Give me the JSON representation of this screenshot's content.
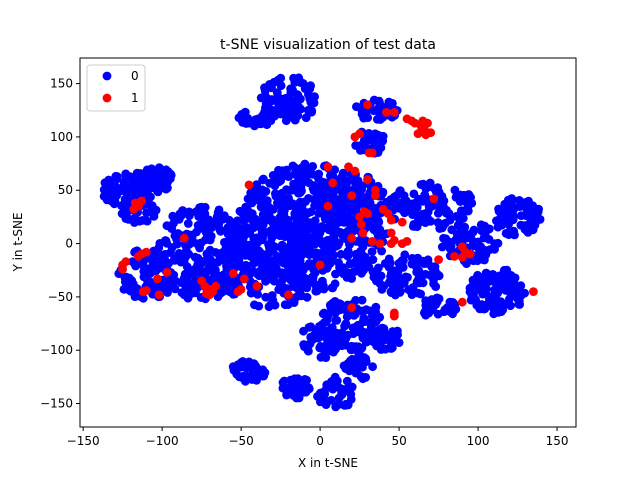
{
  "chart_data": {
    "type": "scatter",
    "title": "t-SNE visualization of test data",
    "xlabel": "X in t-SNE",
    "ylabel": "Y in t-SNE",
    "xlim": [
      -152,
      162
    ],
    "ylim": [
      -172,
      174
    ],
    "xticks": [
      -150,
      -100,
      -50,
      0,
      50,
      100,
      150
    ],
    "yticks": [
      -150,
      -100,
      -50,
      0,
      50,
      100,
      150
    ],
    "grid": false,
    "legend_position": "top-left",
    "series": [
      {
        "name": "0",
        "color": "#0000ff",
        "clusters": [
          {
            "cx": -5,
            "cy": 15,
            "rx": 48,
            "ry": 60,
            "n": 500
          },
          {
            "cx": 20,
            "cy": 40,
            "rx": 25,
            "ry": 25,
            "n": 140
          },
          {
            "cx": -30,
            "cy": -20,
            "rx": 35,
            "ry": 40,
            "n": 200
          },
          {
            "cx": -75,
            "cy": 0,
            "rx": 28,
            "ry": 35,
            "n": 160
          },
          {
            "cx": -120,
            "cy": 50,
            "rx": 18,
            "ry": 18,
            "n": 90
          },
          {
            "cx": -105,
            "cy": 60,
            "rx": 12,
            "ry": 12,
            "n": 50
          },
          {
            "cx": -115,
            "cy": 30,
            "rx": 12,
            "ry": 12,
            "n": 40
          },
          {
            "cx": -110,
            "cy": -30,
            "rx": 18,
            "ry": 25,
            "n": 90
          },
          {
            "cx": -75,
            "cy": -40,
            "rx": 18,
            "ry": 14,
            "n": 70
          },
          {
            "cx": -20,
            "cy": 135,
            "rx": 18,
            "ry": 22,
            "n": 90
          },
          {
            "cx": -40,
            "cy": 118,
            "rx": 12,
            "ry": 8,
            "n": 30
          },
          {
            "cx": 35,
            "cy": 125,
            "rx": 15,
            "ry": 10,
            "n": 40
          },
          {
            "cx": 32,
            "cy": 95,
            "rx": 10,
            "ry": 12,
            "n": 30
          },
          {
            "cx": 70,
            "cy": 35,
            "rx": 28,
            "ry": 22,
            "n": 110
          },
          {
            "cx": 55,
            "cy": -30,
            "rx": 22,
            "ry": 20,
            "n": 80
          },
          {
            "cx": 95,
            "cy": 0,
            "rx": 18,
            "ry": 20,
            "n": 70
          },
          {
            "cx": 112,
            "cy": -45,
            "rx": 18,
            "ry": 22,
            "n": 90
          },
          {
            "cx": 125,
            "cy": 25,
            "rx": 15,
            "ry": 18,
            "n": 70
          },
          {
            "cx": 20,
            "cy": -75,
            "rx": 20,
            "ry": 25,
            "n": 90
          },
          {
            "cx": 0,
            "cy": -90,
            "rx": 12,
            "ry": 18,
            "n": 50
          },
          {
            "cx": 40,
            "cy": -90,
            "rx": 12,
            "ry": 12,
            "n": 40
          },
          {
            "cx": -45,
            "cy": -120,
            "rx": 12,
            "ry": 10,
            "n": 40
          },
          {
            "cx": -15,
            "cy": -135,
            "rx": 10,
            "ry": 10,
            "n": 30
          },
          {
            "cx": 10,
            "cy": -140,
            "rx": 12,
            "ry": 15,
            "n": 40
          },
          {
            "cx": 25,
            "cy": -115,
            "rx": 10,
            "ry": 12,
            "n": 30
          },
          {
            "cx": 75,
            "cy": -60,
            "rx": 12,
            "ry": 10,
            "n": 30
          }
        ]
      },
      {
        "name": "1",
        "color": "#ff0000",
        "points": [
          [
            30,
            130
          ],
          [
            42,
            123
          ],
          [
            47,
            123
          ],
          [
            22,
            100
          ],
          [
            25,
            103
          ],
          [
            31,
            85
          ],
          [
            33,
            85
          ],
          [
            55,
            117
          ],
          [
            60,
            113
          ],
          [
            64,
            110
          ],
          [
            66,
            107
          ],
          [
            62,
            103
          ],
          [
            68,
            113
          ],
          [
            67,
            102
          ],
          [
            70,
            104
          ],
          [
            58,
            115
          ],
          [
            65,
            115
          ],
          [
            -117,
            38
          ],
          [
            -115,
            35
          ],
          [
            -113,
            40
          ],
          [
            -118,
            32
          ],
          [
            -45,
            55
          ],
          [
            5,
            72
          ],
          [
            18,
            72
          ],
          [
            22,
            68
          ],
          [
            30,
            60
          ],
          [
            35,
            50
          ],
          [
            20,
            45
          ],
          [
            35,
            45
          ],
          [
            8,
            57
          ],
          [
            5,
            35
          ],
          [
            25,
            25
          ],
          [
            28,
            30
          ],
          [
            30,
            28
          ],
          [
            40,
            32
          ],
          [
            43,
            28
          ],
          [
            45,
            22
          ],
          [
            52,
            20
          ],
          [
            26,
            18
          ],
          [
            27,
            10
          ],
          [
            33,
            2
          ],
          [
            38,
            0
          ],
          [
            45,
            0
          ],
          [
            47,
            3
          ],
          [
            52,
            0
          ],
          [
            55,
            2
          ],
          [
            20,
            5
          ],
          [
            45,
            10
          ],
          [
            72,
            42
          ],
          [
            75,
            -15
          ],
          [
            85,
            -12
          ],
          [
            90,
            -3
          ],
          [
            92,
            -8
          ],
          [
            90,
            -13
          ],
          [
            95,
            -10
          ],
          [
            90,
            -55
          ],
          [
            135,
            -45
          ],
          [
            -125,
            -20
          ],
          [
            -123,
            -17
          ],
          [
            -125,
            -24
          ],
          [
            -115,
            -12
          ],
          [
            -113,
            -10
          ],
          [
            -110,
            -8
          ],
          [
            -97,
            -27
          ],
          [
            -103,
            -33
          ],
          [
            -112,
            -45
          ],
          [
            -110,
            -44
          ],
          [
            -102,
            -48
          ],
          [
            -86,
            5
          ],
          [
            -75,
            -35
          ],
          [
            -73,
            -40
          ],
          [
            -70,
            -43
          ],
          [
            -70,
            -48
          ],
          [
            -68,
            -45
          ],
          [
            -72,
            -47
          ],
          [
            -66,
            -40
          ],
          [
            -55,
            -28
          ],
          [
            -48,
            -33
          ],
          [
            -50,
            -43
          ],
          [
            -52,
            -45
          ],
          [
            -40,
            -40
          ],
          [
            -20,
            -48
          ],
          [
            0,
            -20
          ],
          [
            20,
            -60
          ],
          [
            47,
            -65
          ],
          [
            47,
            -68
          ]
        ]
      }
    ]
  }
}
